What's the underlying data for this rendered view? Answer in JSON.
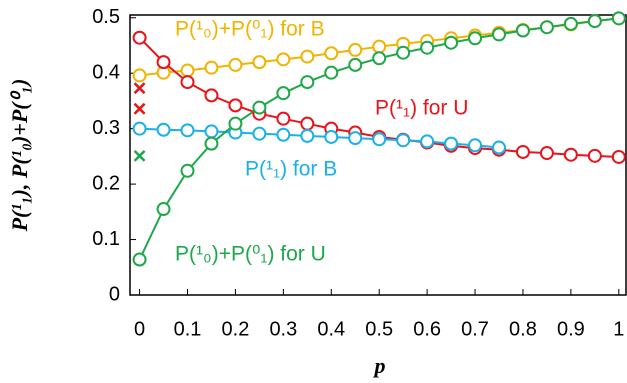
{
  "chart_data": {
    "type": "line",
    "xlabel": "p",
    "ylabel": "P(¹₁),  P(¹₀)+P(⁰₁)",
    "x": [
      0,
      0.05,
      0.1,
      0.15,
      0.2,
      0.25,
      0.3,
      0.35,
      0.4,
      0.45,
      0.5,
      0.55,
      0.6,
      0.65,
      0.7,
      0.75,
      0.8,
      0.85,
      0.9,
      0.95,
      1
    ],
    "series": [
      {
        "name": "P(¹₀)+P(⁰₁) for B",
        "color": "#f0b400",
        "crosses": [
          0.336
        ],
        "values": [
          0.396,
          0.401,
          0.405,
          0.41,
          0.415,
          0.42,
          0.425,
          0.43,
          0.436,
          0.442,
          0.448,
          0.453,
          0.458,
          0.463,
          0.468,
          0.473,
          0.478,
          0.483,
          0.488,
          0.494,
          0.499
        ]
      },
      {
        "name": "P(¹₁) for U",
        "color": "#e8141c",
        "crosses": [
          0.373,
          0.336
        ],
        "values": [
          0.464,
          0.42,
          0.384,
          0.36,
          0.342,
          0.327,
          0.318,
          0.309,
          0.3,
          0.293,
          0.285,
          0.28,
          0.275,
          0.269,
          0.265,
          0.262,
          0.258,
          0.256,
          0.253,
          0.251,
          0.249
        ]
      },
      {
        "name": "P(¹₁) for B",
        "color": "#1ab0e8",
        "crosses": [],
        "values": [
          0.3,
          0.298,
          0.297,
          0.295,
          0.293,
          0.291,
          0.289,
          0.287,
          0.285,
          0.283,
          0.281,
          0.279,
          0.277,
          0.273,
          0.27,
          0.266,
          null,
          null,
          null,
          null,
          null
        ]
      },
      {
        "name": "P(¹₀)+P(⁰₁) for U",
        "color": "#1ea84a",
        "crosses": [
          0.251
        ],
        "values": [
          0.064,
          0.155,
          0.224,
          0.273,
          0.309,
          0.338,
          0.364,
          0.384,
          0.401,
          0.415,
          0.427,
          0.437,
          0.446,
          0.455,
          0.463,
          0.47,
          0.477,
          0.483,
          0.489,
          0.494,
          0.499
        ]
      }
    ],
    "xlim": [
      -0.02,
      1.015
    ],
    "ylim": [
      0,
      0.505
    ],
    "xticks": [
      0,
      0.1,
      0.2,
      0.3,
      0.4,
      0.5,
      0.6,
      0.7,
      0.8,
      0.9,
      1
    ],
    "yticks": [
      0,
      0.1,
      0.2,
      0.3,
      0.4,
      0.5
    ],
    "grid": false
  }
}
